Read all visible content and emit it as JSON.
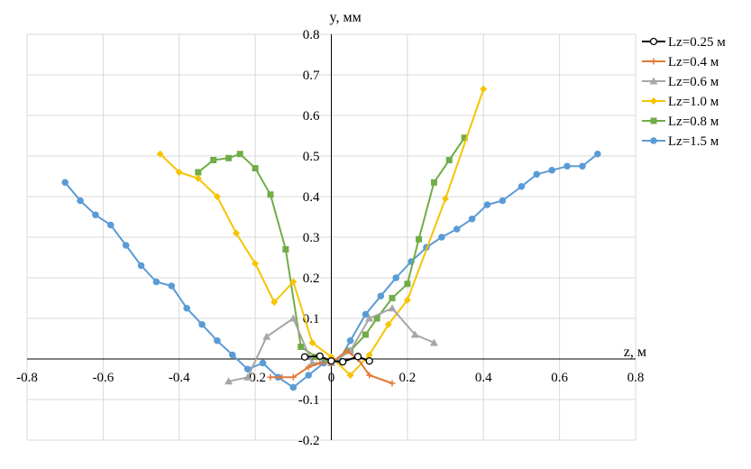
{
  "chart_data": {
    "type": "scatter",
    "title": "",
    "xlabel": "z, м",
    "ylabel": "y, мм",
    "xlim": [
      -0.8,
      0.8
    ],
    "ylim": [
      -0.2,
      0.8
    ],
    "xticks": [
      "-0.8",
      "-0.6",
      "-0.4",
      "-0.2",
      "0",
      "0.2",
      "0.4",
      "0.6",
      "0.8"
    ],
    "yticks": [
      "-0.2",
      "-0.1",
      "0",
      "0.1",
      "0.2",
      "0.3",
      "0.4",
      "0.5",
      "0.6",
      "0.7",
      "0.8"
    ],
    "grid": true,
    "legend_position": "top-right",
    "series": [
      {
        "name": "Lz=0.25 м",
        "color": "#000000",
        "marker": "open-circle",
        "points": [
          [
            -0.07,
            0.005
          ],
          [
            -0.03,
            0.007
          ],
          [
            0.0,
            -0.005
          ],
          [
            0.03,
            -0.007
          ],
          [
            0.07,
            0.006
          ],
          [
            0.1,
            -0.005
          ]
        ]
      },
      {
        "name": "Lz=0.4 м",
        "color": "#e07b39",
        "marker": "plus",
        "points": [
          [
            -0.16,
            -0.045
          ],
          [
            -0.13,
            -0.045
          ],
          [
            -0.1,
            -0.045
          ],
          [
            -0.06,
            -0.02
          ],
          [
            -0.03,
            -0.01
          ],
          [
            0.0,
            -0.01
          ],
          [
            0.04,
            0.02
          ],
          [
            0.07,
            0.0
          ],
          [
            0.1,
            -0.04
          ],
          [
            0.16,
            -0.06
          ]
        ]
      },
      {
        "name": "Lz=0.6 м",
        "color": "#a6a6a6",
        "marker": "triangle",
        "points": [
          [
            -0.27,
            -0.055
          ],
          [
            -0.22,
            -0.045
          ],
          [
            -0.17,
            0.055
          ],
          [
            -0.1,
            0.1
          ],
          [
            -0.05,
            -0.01
          ],
          [
            0.0,
            -0.01
          ],
          [
            0.05,
            0.02
          ],
          [
            0.1,
            0.1
          ],
          [
            0.16,
            0.125
          ],
          [
            0.22,
            0.06
          ],
          [
            0.27,
            0.04
          ]
        ]
      },
      {
        "name": "Lz=1.0 м",
        "color": "#f5c400",
        "marker": "diamond",
        "points": [
          [
            -0.45,
            0.505
          ],
          [
            -0.4,
            0.46
          ],
          [
            -0.35,
            0.445
          ],
          [
            -0.3,
            0.4
          ],
          [
            -0.25,
            0.31
          ],
          [
            -0.2,
            0.235
          ],
          [
            -0.15,
            0.14
          ],
          [
            -0.1,
            0.19
          ],
          [
            -0.05,
            0.04
          ],
          [
            0.0,
            0.005
          ],
          [
            0.05,
            -0.04
          ],
          [
            0.1,
            0.01
          ],
          [
            0.15,
            0.085
          ],
          [
            0.2,
            0.145
          ],
          [
            0.3,
            0.395
          ],
          [
            0.4,
            0.665
          ]
        ]
      },
      {
        "name": "Lz=0.8 м",
        "color": "#70ad47",
        "marker": "square",
        "points": [
          [
            -0.35,
            0.46
          ],
          [
            -0.31,
            0.49
          ],
          [
            -0.27,
            0.495
          ],
          [
            -0.24,
            0.505
          ],
          [
            -0.2,
            0.47
          ],
          [
            -0.16,
            0.405
          ],
          [
            -0.12,
            0.27
          ],
          [
            -0.08,
            0.03
          ],
          [
            -0.04,
            0.005
          ],
          [
            0.0,
            -0.01
          ],
          [
            0.05,
            0.02
          ],
          [
            0.09,
            0.06
          ],
          [
            0.12,
            0.1
          ],
          [
            0.16,
            0.15
          ],
          [
            0.2,
            0.185
          ],
          [
            0.23,
            0.295
          ],
          [
            0.27,
            0.435
          ],
          [
            0.31,
            0.49
          ],
          [
            0.35,
            0.545
          ]
        ]
      },
      {
        "name": "Lz=1.5 м",
        "color": "#5b9bd5",
        "marker": "circle",
        "points": [
          [
            -0.7,
            0.435
          ],
          [
            -0.66,
            0.39
          ],
          [
            -0.62,
            0.355
          ],
          [
            -0.58,
            0.33
          ],
          [
            -0.54,
            0.28
          ],
          [
            -0.5,
            0.23
          ],
          [
            -0.46,
            0.19
          ],
          [
            -0.42,
            0.18
          ],
          [
            -0.38,
            0.125
          ],
          [
            -0.34,
            0.085
          ],
          [
            -0.3,
            0.045
          ],
          [
            -0.26,
            0.01
          ],
          [
            -0.22,
            -0.025
          ],
          [
            -0.18,
            -0.01
          ],
          [
            -0.14,
            -0.045
          ],
          [
            -0.1,
            -0.07
          ],
          [
            -0.06,
            -0.04
          ],
          [
            -0.02,
            -0.01
          ],
          [
            0.02,
            -0.005
          ],
          [
            0.05,
            0.045
          ],
          [
            0.09,
            0.11
          ],
          [
            0.13,
            0.155
          ],
          [
            0.17,
            0.2
          ],
          [
            0.21,
            0.24
          ],
          [
            0.25,
            0.275
          ],
          [
            0.29,
            0.3
          ],
          [
            0.33,
            0.32
          ],
          [
            0.37,
            0.345
          ],
          [
            0.41,
            0.38
          ],
          [
            0.45,
            0.39
          ],
          [
            0.5,
            0.425
          ],
          [
            0.54,
            0.455
          ],
          [
            0.58,
            0.465
          ],
          [
            0.62,
            0.475
          ],
          [
            0.66,
            0.475
          ],
          [
            0.7,
            0.505
          ]
        ]
      }
    ]
  }
}
